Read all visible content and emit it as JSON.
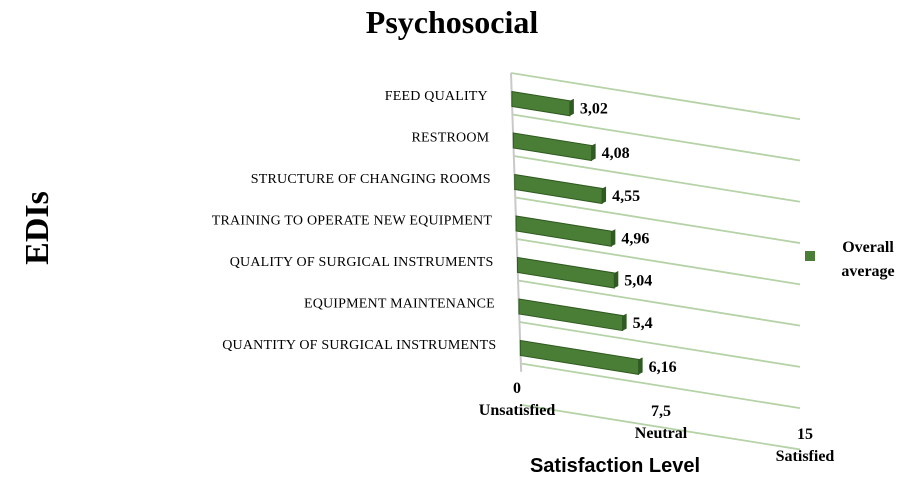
{
  "chart_data": {
    "type": "bar",
    "orientation": "horizontal",
    "title": "Psychosocial",
    "ylabel": "EDIs",
    "xlabel": "Satisfaction Level",
    "categories": [
      "FEED QUALITY",
      "RESTROOM",
      "STRUCTURE OF CHANGING ROOMS",
      "TRAINING TO OPERATE NEW EQUIPMENT",
      "QUALITY OF SURGICAL INSTRUMENTS",
      "EQUIPMENT MAINTENANCE",
      "QUANTITY OF SURGICAL INSTRUMENTS"
    ],
    "values": [
      3.02,
      4.08,
      4.55,
      4.96,
      5.04,
      5.4,
      6.16
    ],
    "value_labels": [
      "3,02",
      "4,08",
      "4,55",
      "4,96",
      "5,04",
      "5,4",
      "6,16"
    ],
    "xlim": [
      0,
      15
    ],
    "ticks": [
      {
        "value": 0,
        "number": "0",
        "text": "Unsatisfied"
      },
      {
        "value": 7.5,
        "number": "7,5",
        "text": "Neutral"
      },
      {
        "value": 15,
        "number": "15",
        "text": "Satisfied"
      }
    ],
    "legend": {
      "label_lines": [
        "Overall",
        "average"
      ],
      "placement": "right"
    },
    "grid": true,
    "bar_color": "#4a7d35",
    "grid_color": "#b5d3a7"
  }
}
